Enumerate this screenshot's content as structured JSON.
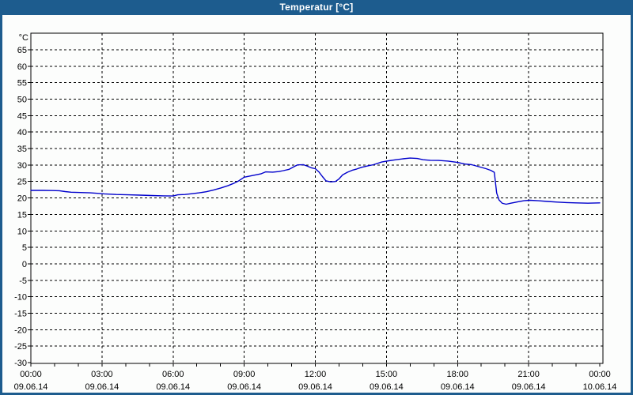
{
  "window": {
    "title": "Temperatur [°C]"
  },
  "colors": {
    "titlebar": "#1d5c8e",
    "window_border": "#1d5c8e",
    "background": "#fcfdfc",
    "plot_line": "#0000cc",
    "grid": "#000000",
    "text": "#000000"
  },
  "chart_data": {
    "type": "line",
    "title": "Temperatur [°C]",
    "grid": "dashed",
    "legend": "none",
    "x_axis": {
      "unit": "time",
      "start_hour": 0,
      "end_hour": 24,
      "major_tick_every_hours": 3,
      "minor_tick_every_hours": 1,
      "labels": [
        {
          "time": "00:00",
          "date": "09.06.14"
        },
        {
          "time": "03:00",
          "date": "09.06.14"
        },
        {
          "time": "06:00",
          "date": "09.06.14"
        },
        {
          "time": "09:00",
          "date": "09.06.14"
        },
        {
          "time": "12:00",
          "date": "09.06.14"
        },
        {
          "time": "15:00",
          "date": "09.06.14"
        },
        {
          "time": "18:00",
          "date": "09.06.14"
        },
        {
          "time": "21:00",
          "date": "09.06.14"
        },
        {
          "time": "00:00",
          "date": "10.06.14"
        }
      ]
    },
    "y_axis": {
      "unit_label": "°C",
      "min": -30,
      "max": 70,
      "tick_step": 5,
      "tick_labels": [
        "65",
        "60",
        "55",
        "50",
        "45",
        "40",
        "35",
        "30",
        "25",
        "20",
        "15",
        "10",
        "5",
        "0",
        "-5",
        "-10",
        "-15",
        "-20",
        "-25",
        "-30"
      ]
    },
    "series": [
      {
        "name": "Temperatur",
        "color": "#0000cc",
        "points": [
          [
            0,
            22.3
          ],
          [
            0.5,
            22.3
          ],
          [
            0.9,
            22.25
          ],
          [
            1.2,
            22.2
          ],
          [
            1.45,
            21.95
          ],
          [
            1.7,
            21.75
          ],
          [
            2.1,
            21.65
          ],
          [
            2.5,
            21.55
          ],
          [
            2.8,
            21.4
          ],
          [
            3.1,
            21.25
          ],
          [
            3.6,
            21.05
          ],
          [
            4.1,
            20.95
          ],
          [
            4.6,
            20.85
          ],
          [
            5.1,
            20.75
          ],
          [
            5.6,
            20.65
          ],
          [
            6.0,
            20.6
          ],
          [
            6.2,
            20.95
          ],
          [
            6.5,
            21.05
          ],
          [
            6.8,
            21.3
          ],
          [
            7.1,
            21.55
          ],
          [
            7.4,
            21.9
          ],
          [
            7.7,
            22.4
          ],
          [
            8.0,
            23.0
          ],
          [
            8.3,
            23.7
          ],
          [
            8.55,
            24.4
          ],
          [
            8.75,
            25.1
          ],
          [
            9.0,
            26.3
          ],
          [
            9.35,
            26.8
          ],
          [
            9.7,
            27.3
          ],
          [
            9.9,
            27.9
          ],
          [
            10.2,
            27.85
          ],
          [
            10.45,
            28.0
          ],
          [
            10.65,
            28.3
          ],
          [
            10.9,
            28.7
          ],
          [
            11.1,
            29.5
          ],
          [
            11.25,
            30.05
          ],
          [
            11.5,
            30.1
          ],
          [
            11.65,
            29.7
          ],
          [
            11.85,
            29.1
          ],
          [
            12.0,
            28.9
          ],
          [
            12.15,
            27.9
          ],
          [
            12.3,
            26.5
          ],
          [
            12.45,
            25.2
          ],
          [
            12.65,
            24.9
          ],
          [
            12.85,
            25.0
          ],
          [
            13.0,
            25.8
          ],
          [
            13.15,
            27.0
          ],
          [
            13.35,
            27.8
          ],
          [
            13.55,
            28.4
          ],
          [
            13.75,
            28.8
          ],
          [
            13.95,
            29.3
          ],
          [
            14.2,
            29.7
          ],
          [
            14.45,
            30.1
          ],
          [
            14.8,
            30.9
          ],
          [
            15.1,
            31.3
          ],
          [
            15.4,
            31.6
          ],
          [
            15.7,
            31.9
          ],
          [
            16.0,
            32.1
          ],
          [
            16.3,
            32.0
          ],
          [
            16.55,
            31.6
          ],
          [
            16.85,
            31.45
          ],
          [
            17.2,
            31.4
          ],
          [
            17.6,
            31.2
          ],
          [
            18.0,
            30.8
          ],
          [
            18.3,
            30.3
          ],
          [
            18.6,
            30.1
          ],
          [
            18.9,
            29.5
          ],
          [
            19.2,
            28.9
          ],
          [
            19.4,
            28.4
          ],
          [
            19.55,
            27.8
          ],
          [
            19.65,
            21.5
          ],
          [
            19.75,
            19.4
          ],
          [
            19.88,
            18.4
          ],
          [
            20.05,
            18.1
          ],
          [
            20.25,
            18.4
          ],
          [
            20.55,
            18.85
          ],
          [
            20.8,
            19.15
          ],
          [
            21.05,
            19.3
          ],
          [
            21.4,
            19.15
          ],
          [
            21.8,
            18.95
          ],
          [
            22.2,
            18.75
          ],
          [
            22.6,
            18.6
          ],
          [
            23.0,
            18.5
          ],
          [
            23.5,
            18.4
          ],
          [
            24,
            18.5
          ]
        ]
      }
    ]
  }
}
